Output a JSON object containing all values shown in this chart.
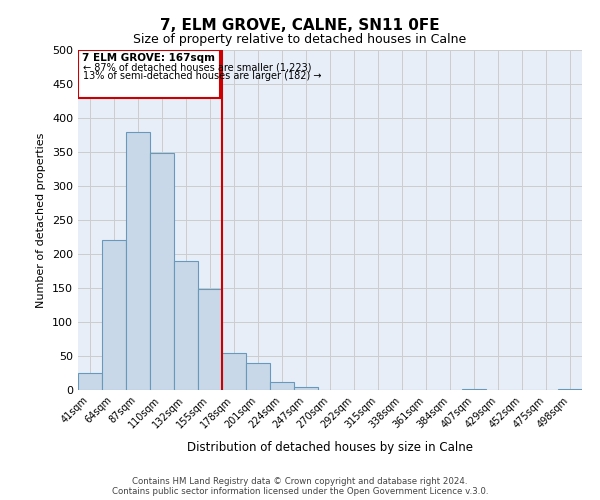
{
  "title": "7, ELM GROVE, CALNE, SN11 0FE",
  "subtitle": "Size of property relative to detached houses in Calne",
  "xlabel": "Distribution of detached houses by size in Calne",
  "ylabel": "Number of detached properties",
  "bar_labels": [
    "41sqm",
    "64sqm",
    "87sqm",
    "110sqm",
    "132sqm",
    "155sqm",
    "178sqm",
    "201sqm",
    "224sqm",
    "247sqm",
    "270sqm",
    "292sqm",
    "315sqm",
    "338sqm",
    "361sqm",
    "384sqm",
    "407sqm",
    "429sqm",
    "452sqm",
    "475sqm",
    "498sqm"
  ],
  "bar_values": [
    25,
    220,
    380,
    348,
    190,
    148,
    54,
    40,
    12,
    5,
    0,
    0,
    0,
    0,
    0,
    0,
    2,
    0,
    0,
    0,
    2
  ],
  "bar_color": "#c8d8e8",
  "bar_edge_color": "#6699bb",
  "bg_color": "#e8eef8",
  "plot_bg_color": "#e8eef8",
  "grid_color": "#cccccc",
  "annotation_box_color": "#cc0000",
  "vline_color": "#cc0000",
  "vline_x": 5.5,
  "annotation_title": "7 ELM GROVE: 167sqm",
  "annotation_line1": "← 87% of detached houses are smaller (1,223)",
  "annotation_line2": "13% of semi-detached houses are larger (182) →",
  "ylim": [
    0,
    500
  ],
  "yticks": [
    0,
    50,
    100,
    150,
    200,
    250,
    300,
    350,
    400,
    450,
    500
  ],
  "footer_line1": "Contains HM Land Registry data © Crown copyright and database right 2024.",
  "footer_line2": "Contains public sector information licensed under the Open Government Licence v.3.0."
}
